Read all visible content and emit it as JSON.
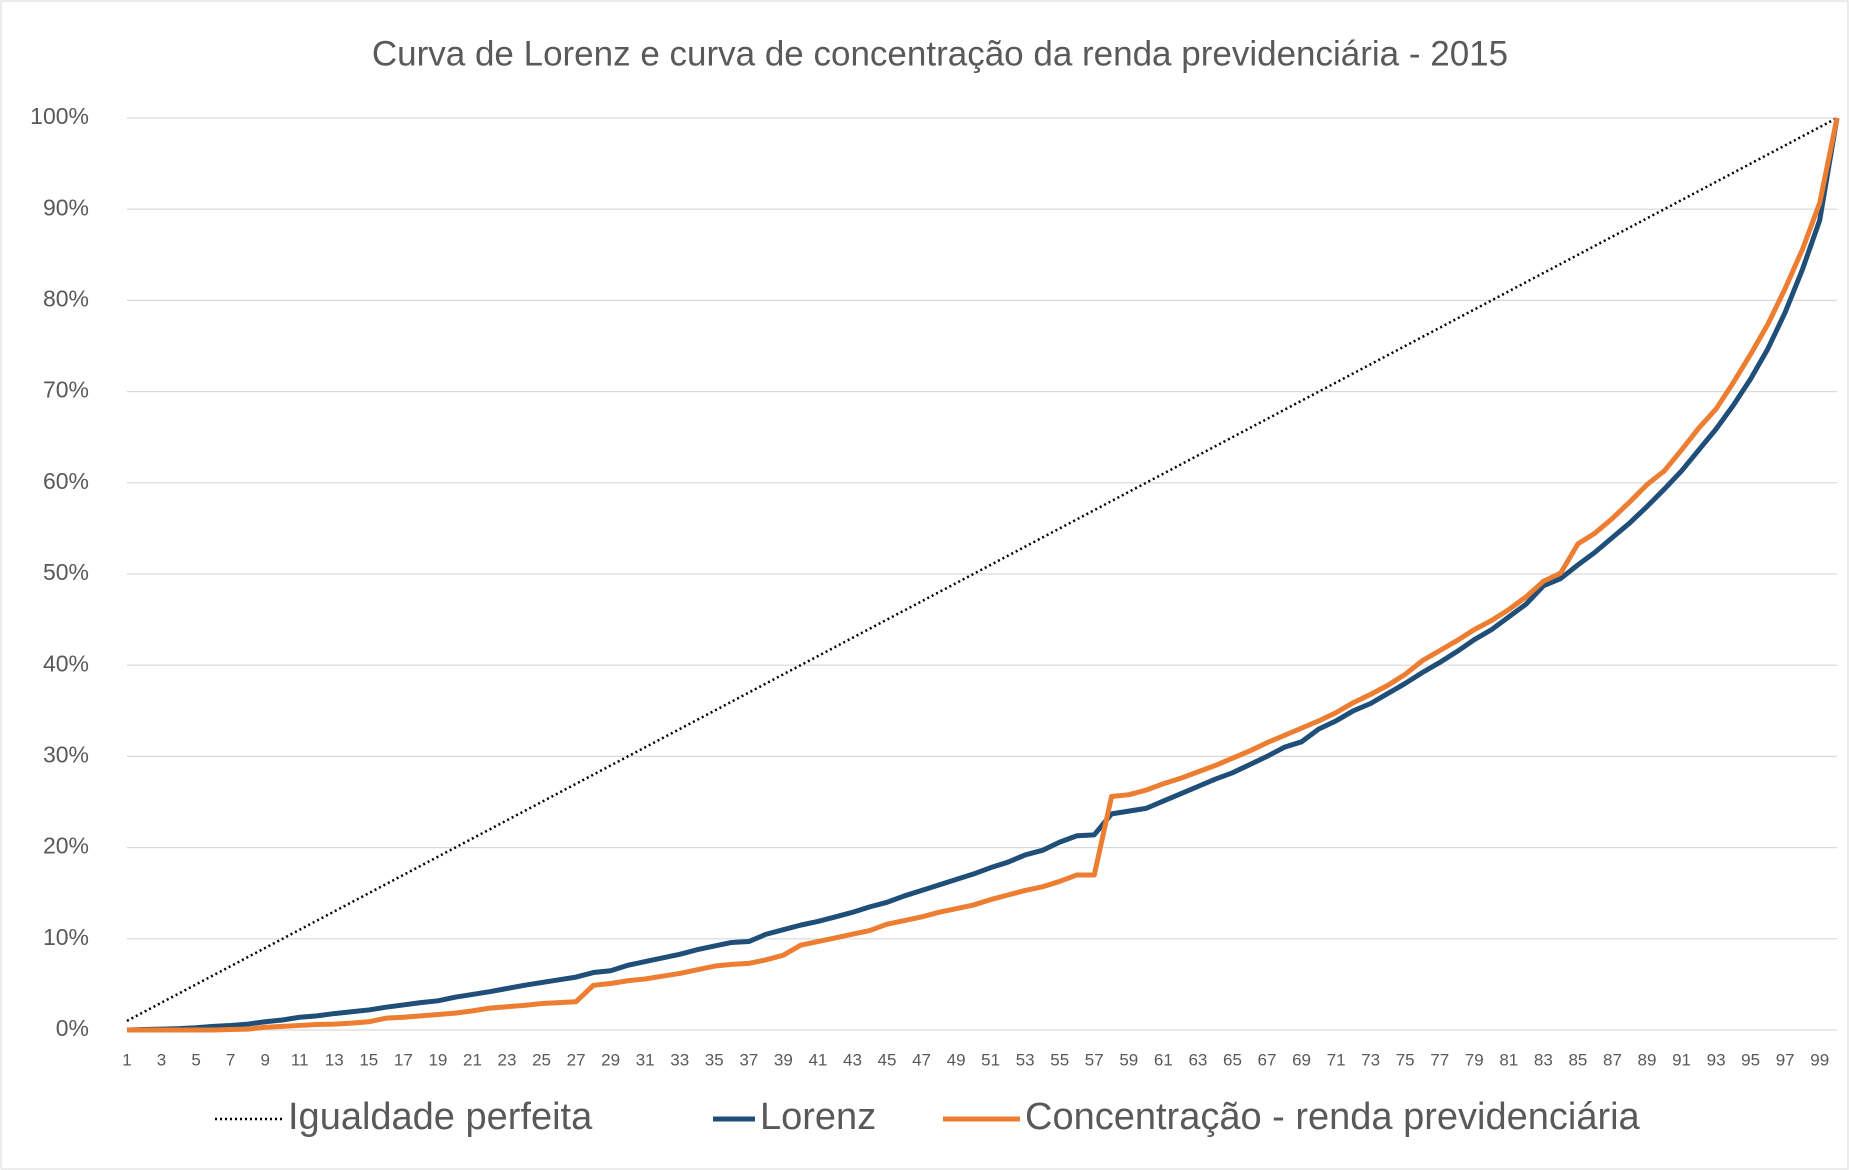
{
  "chart_data": {
    "type": "line",
    "title": "Curva de Lorenz e curva de concentração da renda previdenciária - 2015",
    "categories": [
      1,
      null,
      3,
      null,
      5,
      null,
      7,
      null,
      9,
      null,
      11,
      null,
      13,
      null,
      15,
      null,
      17,
      null,
      19,
      null,
      21,
      null,
      23,
      null,
      25,
      null,
      27,
      null,
      29,
      null,
      31,
      null,
      33,
      null,
      35,
      null,
      37,
      null,
      39,
      null,
      41,
      null,
      43,
      null,
      45,
      null,
      47,
      null,
      49,
      null,
      51,
      null,
      53,
      null,
      55,
      null,
      57,
      null,
      59,
      null,
      61,
      null,
      63,
      null,
      65,
      null,
      67,
      null,
      69,
      null,
      71,
      null,
      73,
      null,
      75,
      null,
      77,
      null,
      79,
      null,
      81,
      null,
      83,
      null,
      85,
      null,
      87,
      null,
      89,
      null,
      91,
      null,
      93,
      null,
      95,
      null,
      97,
      null,
      99,
      null
    ],
    "series": [
      {
        "name": "Igualdade perfeita",
        "color": "#000000",
        "line_style": "dotted",
        "values": [
          1,
          2,
          3,
          4,
          5,
          6,
          7,
          8,
          9,
          10,
          11,
          12,
          13,
          14,
          15,
          16,
          17,
          18,
          19,
          20,
          21,
          22,
          23,
          24,
          25,
          26,
          27,
          28,
          29,
          30,
          31,
          32,
          33,
          34,
          35,
          36,
          37,
          38,
          39,
          40,
          41,
          42,
          43,
          44,
          45,
          46,
          47,
          48,
          49,
          50,
          51,
          52,
          53,
          54,
          55,
          56,
          57,
          58,
          59,
          60,
          61,
          62,
          63,
          64,
          65,
          66,
          67,
          68,
          69,
          70,
          71,
          72,
          73,
          74,
          75,
          76,
          77,
          78,
          79,
          80,
          81,
          82,
          83,
          84,
          85,
          86,
          87,
          88,
          89,
          90,
          91,
          92,
          93,
          94,
          95,
          96,
          97,
          98,
          99,
          100
        ]
      },
      {
        "name": "Lorenz",
        "color": "#1f4e79",
        "line_style": "solid",
        "values": [
          0,
          0.05,
          0.1,
          0.15,
          0.25,
          0.4,
          0.5,
          0.65,
          0.9,
          1.1,
          1.4,
          1.55,
          1.8,
          2.0,
          2.2,
          2.5,
          2.75,
          3.0,
          3.2,
          3.6,
          3.9,
          4.2,
          4.55,
          4.9,
          5.2,
          5.5,
          5.8,
          6.3,
          6.5,
          7.1,
          7.5,
          7.9,
          8.3,
          8.8,
          9.2,
          9.6,
          9.7,
          10.5,
          11.0,
          11.5,
          11.9,
          12.4,
          12.9,
          13.5,
          14.0,
          14.7,
          15.3,
          15.9,
          16.5,
          17.1,
          17.8,
          18.4,
          19.2,
          19.7,
          20.6,
          21.3,
          21.4,
          23.7,
          24.0,
          24.3,
          25.1,
          25.9,
          26.7,
          27.5,
          28.2,
          29.1,
          30.0,
          31.0,
          31.6,
          33.0,
          33.9,
          35.0,
          35.8,
          36.9,
          38.0,
          39.2,
          40.3,
          41.5,
          42.8,
          43.9,
          45.3,
          46.7,
          48.7,
          49.5,
          51.0,
          52.4,
          54.0,
          55.6,
          57.4,
          59.3,
          61.3,
          63.6,
          65.9,
          68.5,
          71.4,
          74.7,
          78.7,
          83.4,
          88.8,
          100
        ]
      },
      {
        "name": "Concentração - renda previdenciária",
        "color": "#ed7d31",
        "line_style": "solid",
        "values": [
          0,
          0,
          0,
          0,
          0,
          0,
          0.05,
          0.1,
          0.3,
          0.4,
          0.5,
          0.6,
          0.65,
          0.75,
          0.9,
          1.3,
          1.4,
          1.55,
          1.7,
          1.85,
          2.1,
          2.4,
          2.55,
          2.7,
          2.9,
          3.0,
          3.1,
          4.9,
          5.1,
          5.4,
          5.6,
          5.9,
          6.2,
          6.6,
          7.0,
          7.2,
          7.3,
          7.7,
          8.2,
          9.3,
          9.7,
          10.1,
          10.5,
          10.9,
          11.6,
          12.0,
          12.4,
          12.9,
          13.3,
          13.7,
          14.3,
          14.8,
          15.3,
          15.7,
          16.3,
          17.0,
          17.0,
          25.6,
          25.8,
          26.3,
          27.0,
          27.6,
          28.3,
          29.0,
          29.8,
          30.6,
          31.5,
          32.3,
          33.1,
          33.9,
          34.8,
          35.9,
          36.8,
          37.8,
          39.0,
          40.5,
          41.6,
          42.7,
          43.9,
          44.9,
          46.1,
          47.5,
          49.2,
          50.1,
          53.3,
          54.5,
          56.1,
          57.9,
          59.8,
          61.3,
          63.6,
          66.0,
          68.1,
          71.0,
          74.1,
          77.4,
          81.3,
          85.6,
          90.7,
          100
        ]
      }
    ],
    "ylim": [
      0,
      100
    ],
    "yticks": [
      {
        "value": 0,
        "label": "0%"
      },
      {
        "value": 10,
        "label": "10%"
      },
      {
        "value": 20,
        "label": "20%"
      },
      {
        "value": 30,
        "label": "30%"
      },
      {
        "value": 40,
        "label": "40%"
      },
      {
        "value": 50,
        "label": "50%"
      },
      {
        "value": 60,
        "label": "60%"
      },
      {
        "value": 70,
        "label": "70%"
      },
      {
        "value": 80,
        "label": "80%"
      },
      {
        "value": 90,
        "label": "90%"
      },
      {
        "value": 100,
        "label": "100%"
      }
    ],
    "grid": true,
    "legend": "bottom"
  }
}
